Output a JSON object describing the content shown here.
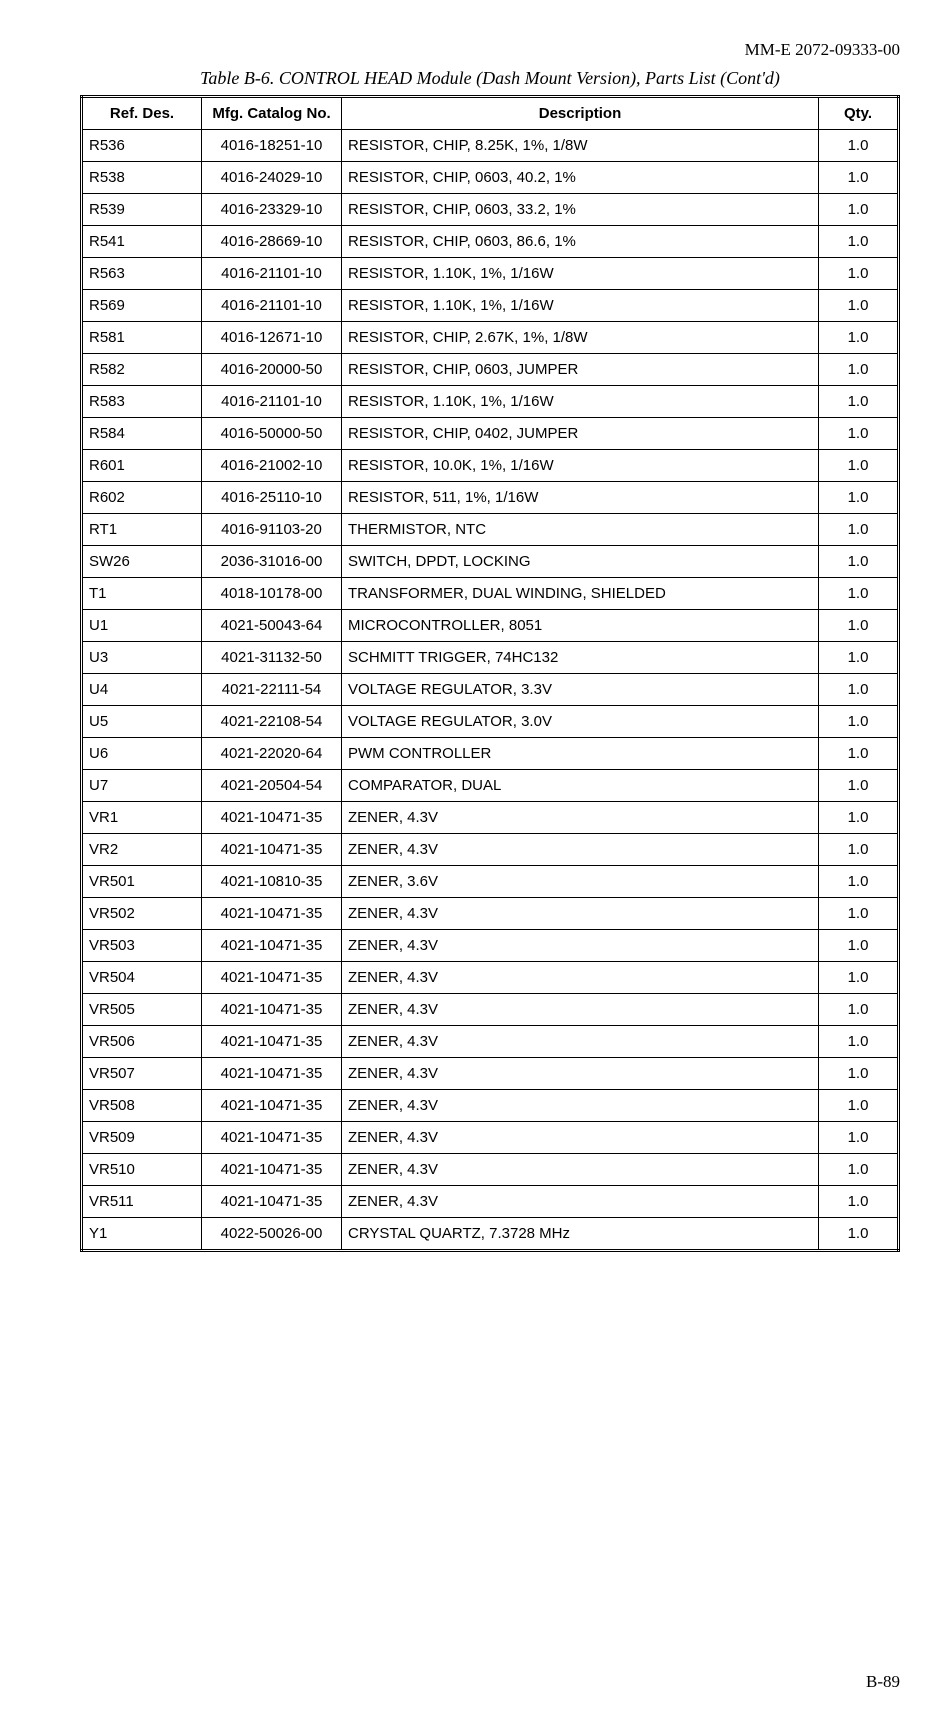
{
  "document_code": "MM-E 2072-09333-00",
  "caption": "Table B-6. CONTROL HEAD Module (Dash Mount Version), Parts List (Cont'd)",
  "page_number": "B-89",
  "table": {
    "columns": [
      "Ref. Des.",
      "Mfg. Catalog No.",
      "Description",
      "Qty."
    ],
    "rows": [
      [
        "R536",
        "4016-18251-10",
        "RESISTOR, CHIP, 8.25K, 1%, 1/8W",
        "1.0"
      ],
      [
        "R538",
        "4016-24029-10",
        "RESISTOR, CHIP, 0603, 40.2, 1%",
        "1.0"
      ],
      [
        "R539",
        "4016-23329-10",
        "RESISTOR, CHIP, 0603, 33.2, 1%",
        "1.0"
      ],
      [
        "R541",
        "4016-28669-10",
        "RESISTOR, CHIP, 0603, 86.6, 1%",
        "1.0"
      ],
      [
        "R563",
        "4016-21101-10",
        "RESISTOR, 1.10K, 1%, 1/16W",
        "1.0"
      ],
      [
        "R569",
        "4016-21101-10",
        "RESISTOR, 1.10K, 1%, 1/16W",
        "1.0"
      ],
      [
        "R581",
        "4016-12671-10",
        "RESISTOR, CHIP, 2.67K, 1%, 1/8W",
        "1.0"
      ],
      [
        "R582",
        "4016-20000-50",
        "RESISTOR, CHIP, 0603, JUMPER",
        "1.0"
      ],
      [
        "R583",
        "4016-21101-10",
        "RESISTOR, 1.10K, 1%, 1/16W",
        "1.0"
      ],
      [
        "R584",
        "4016-50000-50",
        "RESISTOR, CHIP, 0402, JUMPER",
        "1.0"
      ],
      [
        "R601",
        "4016-21002-10",
        "RESISTOR, 10.0K, 1%, 1/16W",
        "1.0"
      ],
      [
        "R602",
        "4016-25110-10",
        "RESISTOR, 511, 1%, 1/16W",
        "1.0"
      ],
      [
        "RT1",
        "4016-91103-20",
        "THERMISTOR, NTC",
        "1.0"
      ],
      [
        "SW26",
        "2036-31016-00",
        "SWITCH, DPDT, LOCKING",
        "1.0"
      ],
      [
        "T1",
        "4018-10178-00",
        "TRANSFORMER, DUAL WINDING, SHIELDED",
        "1.0"
      ],
      [
        "U1",
        "4021-50043-64",
        "MICROCONTROLLER, 8051",
        "1.0"
      ],
      [
        "U3",
        "4021-31132-50",
        "SCHMITT TRIGGER, 74HC132",
        "1.0"
      ],
      [
        "U4",
        "4021-22111-54",
        "VOLTAGE REGULATOR, 3.3V",
        "1.0"
      ],
      [
        "U5",
        "4021-22108-54",
        "VOLTAGE REGULATOR, 3.0V",
        "1.0"
      ],
      [
        "U6",
        "4021-22020-64",
        "PWM CONTROLLER",
        "1.0"
      ],
      [
        "U7",
        "4021-20504-54",
        "COMPARATOR, DUAL",
        "1.0"
      ],
      [
        "VR1",
        "4021-10471-35",
        "ZENER, 4.3V",
        "1.0"
      ],
      [
        "VR2",
        "4021-10471-35",
        "ZENER, 4.3V",
        "1.0"
      ],
      [
        "VR501",
        "4021-10810-35",
        "ZENER, 3.6V",
        "1.0"
      ],
      [
        "VR502",
        "4021-10471-35",
        "ZENER, 4.3V",
        "1.0"
      ],
      [
        "VR503",
        "4021-10471-35",
        "ZENER, 4.3V",
        "1.0"
      ],
      [
        "VR504",
        "4021-10471-35",
        "ZENER, 4.3V",
        "1.0"
      ],
      [
        "VR505",
        "4021-10471-35",
        "ZENER, 4.3V",
        "1.0"
      ],
      [
        "VR506",
        "4021-10471-35",
        "ZENER, 4.3V",
        "1.0"
      ],
      [
        "VR507",
        "4021-10471-35",
        "ZENER, 4.3V",
        "1.0"
      ],
      [
        "VR508",
        "4021-10471-35",
        "ZENER, 4.3V",
        "1.0"
      ],
      [
        "VR509",
        "4021-10471-35",
        "ZENER, 4.3V",
        "1.0"
      ],
      [
        "VR510",
        "4021-10471-35",
        "ZENER, 4.3V",
        "1.0"
      ],
      [
        "VR511",
        "4021-10471-35",
        "ZENER, 4.3V",
        "1.0"
      ],
      [
        "Y1",
        "4022-50026-00",
        "CRYSTAL QUARTZ, 7.3728 MHz",
        "1.0"
      ]
    ]
  }
}
